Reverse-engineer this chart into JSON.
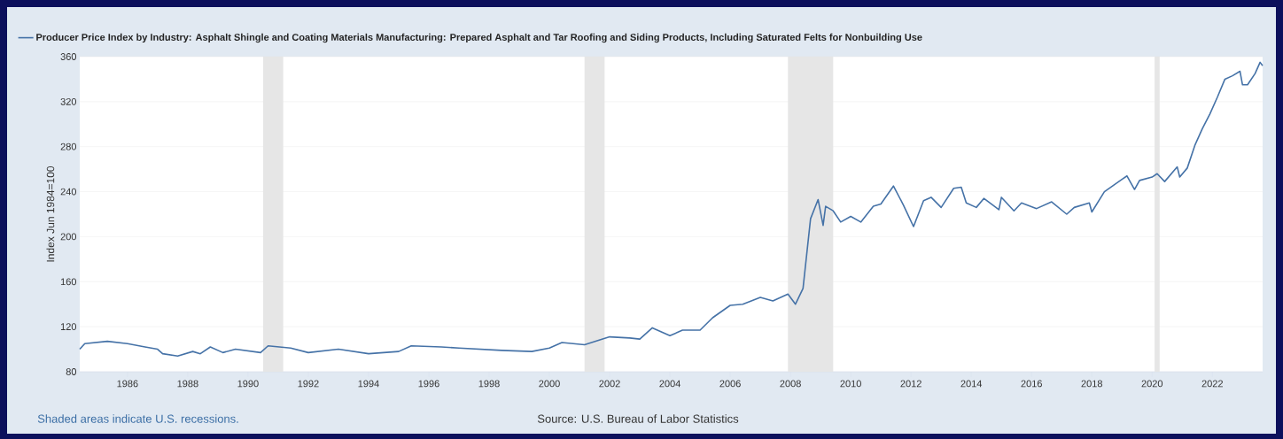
{
  "chart_data": {
    "type": "line",
    "ylabel": "Index Jun 1984=100",
    "annotations": [
      "Shaded areas indicate U.S. recessions.",
      "Source: U.S. Bureau of Labor Statistics"
    ],
    "xlim": [
      "1984-06",
      "2023-09"
    ],
    "xticks": [
      "1986",
      "1988",
      "1990",
      "1992",
      "1994",
      "1996",
      "1998",
      "2000",
      "2002",
      "2004",
      "2006",
      "2008",
      "2010",
      "2012",
      "2014",
      "2016",
      "2018",
      "2020",
      "2022"
    ],
    "ylim": [
      80,
      360
    ],
    "yticks": [
      80,
      120,
      160,
      200,
      240,
      280,
      320,
      360
    ],
    "grid": "y",
    "legend": "top left",
    "line_style": "solid",
    "marker": "none",
    "bands": [
      {
        "axis": "x",
        "from": "1990-07",
        "to": "1991-03",
        "color": "#e6e6e6"
      },
      {
        "axis": "x",
        "from": "2001-03",
        "to": "2001-11",
        "color": "#e6e6e6"
      },
      {
        "axis": "x",
        "from": "2007-12",
        "to": "2009-06",
        "color": "#e6e6e6"
      },
      {
        "axis": "x",
        "from": "2020-02",
        "to": "2020-04",
        "color": "#e6e6e6"
      }
    ],
    "series": [
      {
        "name": "Producer Price Index by Industry: Asphalt Shingle and Coating Materials Manufacturing: Prepared Asphalt and Tar Roofing and Siding Products, Including Saturated Felts for Nonbuilding Use",
        "color": "#4572a7",
        "x": [
          "1984-06",
          "1984-08",
          "1985-05",
          "1986-01",
          "1986-08",
          "1987-01",
          "1987-03",
          "1987-09",
          "1988-03",
          "1988-06",
          "1988-10",
          "1989-03",
          "1989-08",
          "1990-06",
          "1990-09",
          "1991-06",
          "1992-01",
          "1993-01",
          "1994-01",
          "1995-01",
          "1995-06",
          "1996-06",
          "1997-01",
          "1998-06",
          "1999-06",
          "2000-01",
          "2000-06",
          "2001-03",
          "2002-01",
          "2002-09",
          "2003-01",
          "2003-06",
          "2004-01",
          "2004-06",
          "2005-01",
          "2005-06",
          "2006-01",
          "2006-06",
          "2007-01",
          "2007-06",
          "2007-12",
          "2008-03",
          "2008-06",
          "2008-09",
          "2008-12",
          "2009-02",
          "2009-03",
          "2009-06",
          "2009-09",
          "2010-01",
          "2010-05",
          "2010-10",
          "2011-01",
          "2011-06",
          "2011-10",
          "2012-02",
          "2012-06",
          "2012-09",
          "2013-01",
          "2013-06",
          "2013-09",
          "2013-11",
          "2014-03",
          "2014-06",
          "2014-12",
          "2015-01",
          "2015-06",
          "2015-09",
          "2016-03",
          "2016-09",
          "2017-03",
          "2017-06",
          "2017-12",
          "2018-01",
          "2018-06",
          "2019-01",
          "2019-03",
          "2019-06",
          "2019-08",
          "2020-01",
          "2020-03",
          "2020-06",
          "2020-11",
          "2020-12",
          "2021-03",
          "2021-06",
          "2021-09",
          "2021-12",
          "2022-03",
          "2022-06",
          "2022-09",
          "2022-12",
          "2023-01",
          "2023-03",
          "2023-06",
          "2023-08",
          "2023-09"
        ],
        "values": [
          100,
          105,
          107,
          105,
          102,
          100,
          96,
          94,
          98,
          96,
          102,
          97,
          100,
          97,
          103,
          101,
          97,
          100,
          96,
          98,
          103,
          102,
          101,
          99,
          98,
          101,
          106,
          104,
          111,
          110,
          109,
          119,
          112,
          117,
          117,
          128,
          139,
          140,
          146,
          143,
          149,
          140,
          154,
          216,
          233,
          210,
          227,
          223,
          213,
          218,
          213,
          227,
          229,
          245,
          228,
          209,
          232,
          235,
          226,
          243,
          244,
          230,
          226,
          234,
          224,
          235,
          223,
          230,
          225,
          231,
          220,
          226,
          230,
          222,
          240,
          251,
          254,
          242,
          250,
          253,
          256,
          249,
          262,
          253,
          261,
          281,
          296,
          309,
          324,
          340,
          343,
          347,
          335,
          335,
          345,
          355,
          352
        ]
      }
    ]
  }
}
